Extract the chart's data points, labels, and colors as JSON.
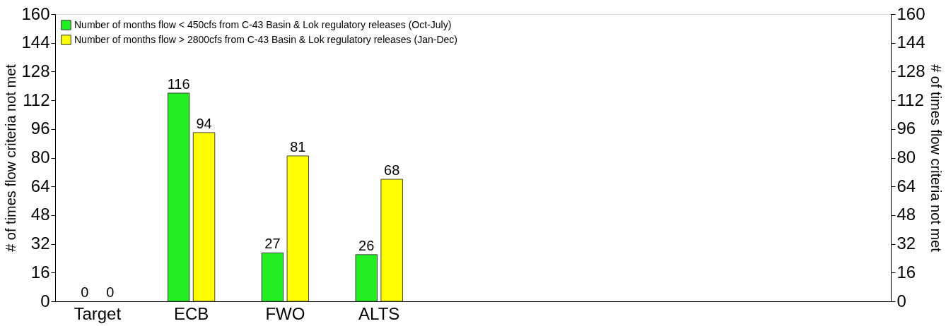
{
  "chart_data": {
    "type": "bar",
    "categories": [
      "Target",
      "ECB",
      "FWO",
      "ALTS",
      null,
      null,
      null,
      null,
      null
    ],
    "series": [
      {
        "name": "Number of months flow < 450cfs from C-43 Basin & Lok regulatory releases (Oct-July)",
        "color": "#22ee22",
        "values": [
          0,
          116,
          27,
          26,
          null,
          null,
          null,
          null,
          null
        ]
      },
      {
        "name": "Number of months flow > 2800cfs from C-43 Basin & Lok regulatory releases (Jan-Dec)",
        "color": "#ffff00",
        "values": [
          0,
          94,
          81,
          68,
          null,
          null,
          null,
          null,
          null
        ]
      }
    ],
    "ylabel": "# of times flow criteria not met",
    "y2label": "# of times flow criteria not met",
    "ylim": [
      0,
      160
    ],
    "yticks": [
      0,
      16,
      32,
      48,
      64,
      80,
      96,
      112,
      128,
      144,
      160
    ],
    "y2lim": [
      0,
      160
    ],
    "y2ticks": [
      0,
      16,
      32,
      48,
      64,
      80,
      96,
      112,
      128,
      144,
      160
    ],
    "data_labels": true,
    "grid": false,
    "legend": "top left"
  }
}
